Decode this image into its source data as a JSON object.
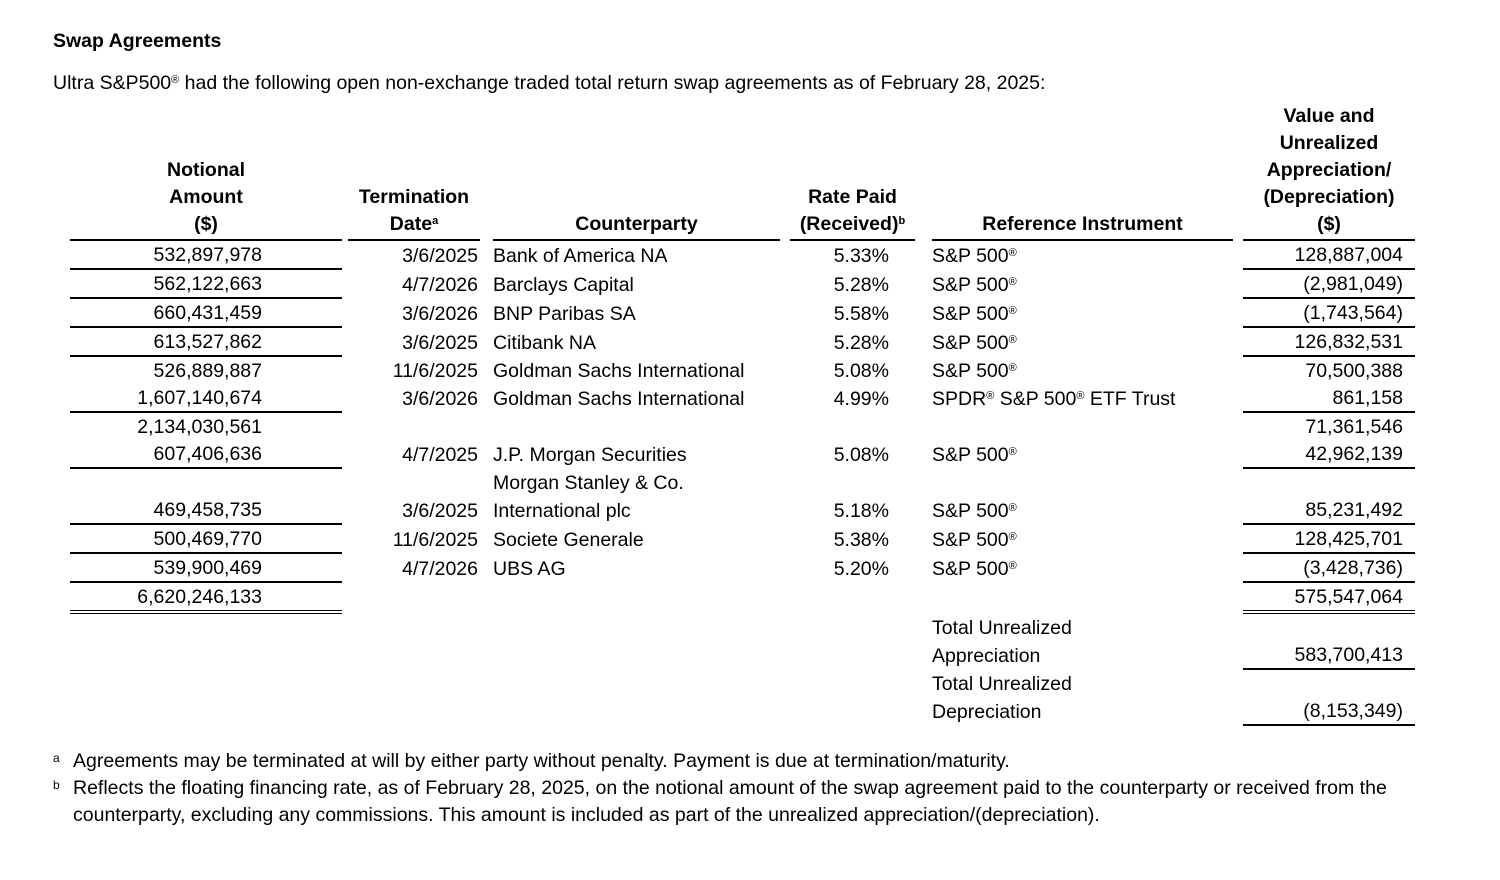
{
  "colors": {
    "text": "#000000",
    "background": "#ffffff"
  },
  "page": {
    "title": "Swap Agreements",
    "intro_prefix": "Ultra S&P500",
    "intro_reg_mark": "®",
    "intro_rest": " had the following open non-exchange traded total return swap agreements as of February 28, 2025:"
  },
  "table": {
    "headers": {
      "notional_l1": "Notional",
      "notional_l2": "Amount",
      "notional_l3": "($)",
      "termination_l1": "Termination",
      "termination_l2": "Date",
      "termination_sup": "a",
      "counterparty": "Counterparty",
      "rate_l1": "Rate Paid",
      "rate_l2": "(Received)",
      "rate_sup": "b",
      "reference": "Reference Instrument",
      "value_l1": "Value and",
      "value_l2": "Unrealized",
      "value_l3": "Appreciation/",
      "value_l4": "(Depreciation)",
      "value_l5": "($)"
    },
    "rows": [
      {
        "notional": "532,897,978",
        "date": "3/6/2025",
        "counterparty": "Bank of America NA",
        "rate": "5.33%",
        "reference": [
          {
            "t": "S&P 500"
          },
          {
            "sup": "®"
          }
        ],
        "value": "128,887,004"
      },
      {
        "notional": "562,122,663",
        "date": "4/7/2026",
        "counterparty": "Barclays Capital",
        "rate": "5.28%",
        "reference": [
          {
            "t": "S&P 500"
          },
          {
            "sup": "®"
          }
        ],
        "value": "(2,981,049)"
      },
      {
        "notional": "660,431,459",
        "date": "3/6/2026",
        "counterparty": "BNP Paribas SA",
        "rate": "5.58%",
        "reference": [
          {
            "t": "S&P 500"
          },
          {
            "sup": "®"
          }
        ],
        "value": "(1,743,564)"
      },
      {
        "notional": "613,527,862",
        "date": "3/6/2025",
        "counterparty": "Citibank NA",
        "rate": "5.28%",
        "reference": [
          {
            "t": "S&P 500"
          },
          {
            "sup": "®"
          }
        ],
        "value": "126,832,531"
      },
      {
        "notional": "526,889,887",
        "date": "11/6/2025",
        "counterparty": "Goldman Sachs International",
        "rate": "5.08%",
        "reference": [
          {
            "t": "S&P 500"
          },
          {
            "sup": "®"
          }
        ],
        "value": "70,500,388"
      },
      {
        "notional": "1,607,140,674",
        "date": "3/6/2026",
        "counterparty": "Goldman Sachs International",
        "rate": "4.99%",
        "reference": [
          {
            "t": "SPDR"
          },
          {
            "sup": "®"
          },
          {
            "t": " S&P 500"
          },
          {
            "sup": "®"
          },
          {
            "t": " ETF Trust"
          }
        ],
        "value": "861,158"
      },
      {
        "notional": "2,134,030,561",
        "date": "",
        "counterparty": "",
        "rate": "",
        "reference": [],
        "value": "71,361,546"
      },
      {
        "notional": "607,406,636",
        "date": "4/7/2025",
        "counterparty": "J.P. Morgan Securities",
        "rate": "5.08%",
        "reference": [
          {
            "t": "S&P 500"
          },
          {
            "sup": "®"
          }
        ],
        "value": "42,962,139"
      },
      {
        "notional": "",
        "date": "",
        "counterparty": "Morgan Stanley & Co.",
        "rate": "",
        "reference": [],
        "value": ""
      },
      {
        "notional": "469,458,735",
        "date": "3/6/2025",
        "counterparty": "International plc",
        "rate": "5.18%",
        "reference": [
          {
            "t": "S&P 500"
          },
          {
            "sup": "®"
          }
        ],
        "value": "85,231,492"
      },
      {
        "notional": "500,469,770",
        "date": "11/6/2025",
        "counterparty": "Societe Generale",
        "rate": "5.38%",
        "reference": [
          {
            "t": "S&P 500"
          },
          {
            "sup": "®"
          }
        ],
        "value": "128,425,701"
      },
      {
        "notional": "539,900,469",
        "date": "4/7/2026",
        "counterparty": "UBS AG",
        "rate": "5.20%",
        "reference": [
          {
            "t": "S&P 500"
          },
          {
            "sup": "®"
          }
        ],
        "value": "(3,428,736)"
      },
      {
        "notional": "6,620,246,133",
        "date": "",
        "counterparty": "",
        "rate": "",
        "reference": [],
        "value": "575,547,064"
      }
    ],
    "totals": [
      {
        "label_l1": "Total Unrealized",
        "label_l2": "Appreciation",
        "value": "583,700,413"
      },
      {
        "label_l1": "Total Unrealized",
        "label_l2": "Depreciation",
        "value": "(8,153,349)"
      }
    ]
  },
  "footnotes": [
    {
      "marker": "a",
      "text": "Agreements may be terminated at will by either party without penalty. Payment is due at termination/maturity."
    },
    {
      "marker": "b",
      "text": "Reflects the floating financing rate, as of February 28, 2025, on the notional amount of the swap agreement paid to the counterparty or received from the counterparty, excluding any commissions. This amount is included as part of the unrealized appreciation/(depreciation)."
    }
  ]
}
